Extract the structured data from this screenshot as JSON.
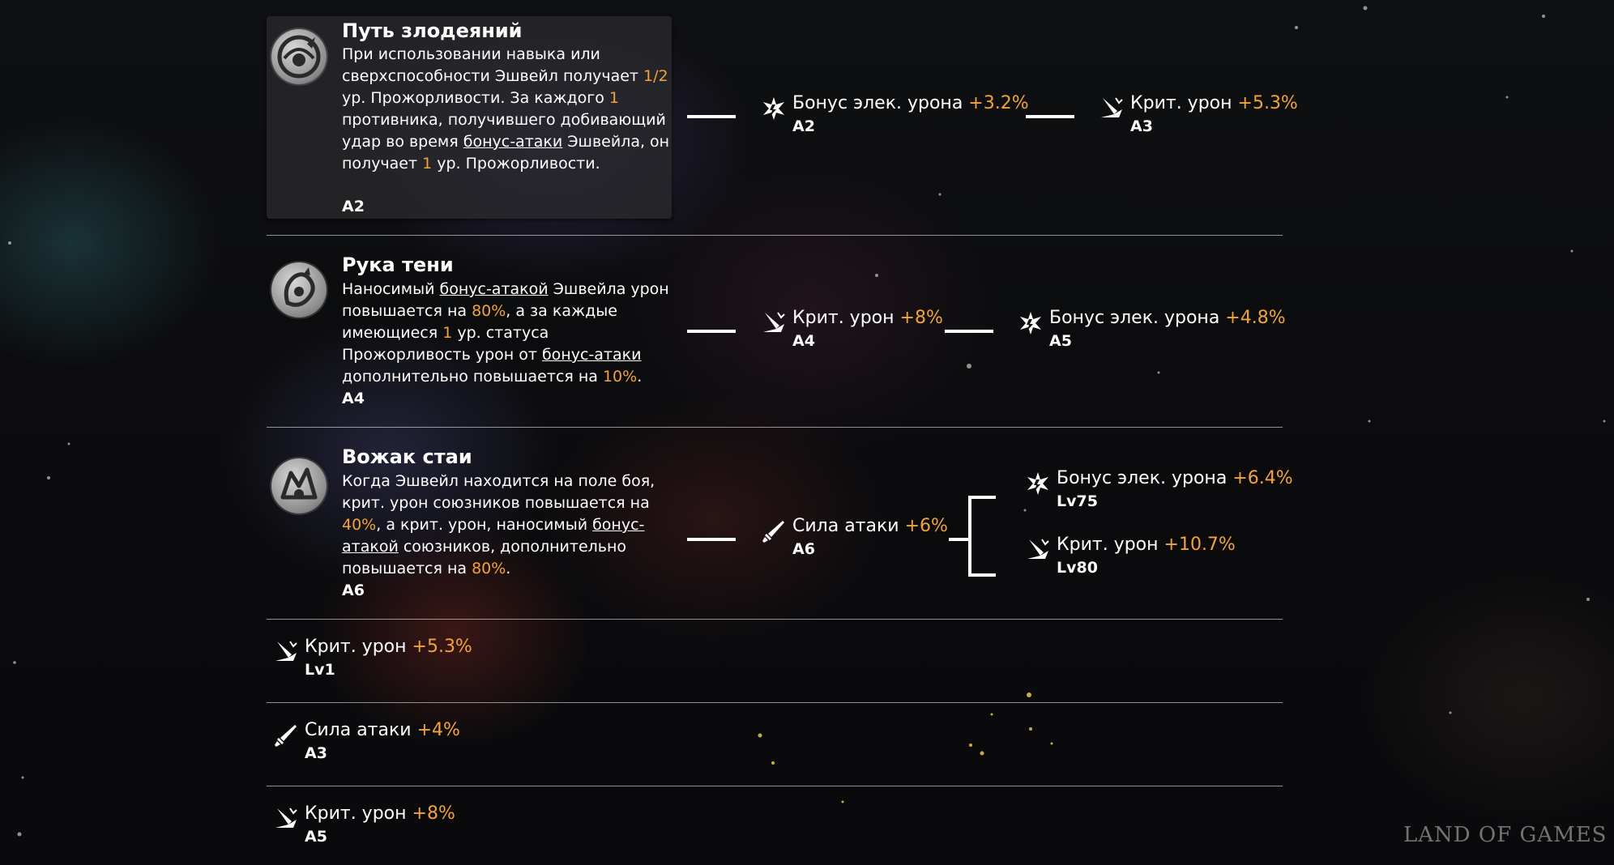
{
  "traces": [
    {
      "icon": "devour-icon",
      "title": "Путь злодеяний",
      "desc": [
        {
          "t": "При использовании навыка или сверхспособности Эшвейл получает "
        },
        {
          "t": "1/2",
          "hl": true
        },
        {
          "t": " ур. Прожорливости. За каждого "
        },
        {
          "t": "1",
          "hl": true
        },
        {
          "t": " противника, получившего добивающий удар во время "
        },
        {
          "t": "бонус-атаки",
          "u": true
        },
        {
          "t": " Эшвейла, он получает "
        },
        {
          "t": "1",
          "hl": true
        },
        {
          "t": " ур. Прожорливости."
        }
      ],
      "level": "A2",
      "stats": [
        {
          "icon": "elemental-damage-icon",
          "name": "Бонус элек. урона ",
          "value": "+3.2%",
          "level": "A2"
        },
        {
          "icon": "crit-damage-icon",
          "name": "Крит. урон ",
          "value": "+5.3%",
          "level": "A3"
        }
      ]
    },
    {
      "icon": "shadow-hand-icon",
      "title": "Рука тени",
      "desc": [
        {
          "t": "Наносимый "
        },
        {
          "t": "бонус-атакой",
          "u": true
        },
        {
          "t": " Эшвейла урон повышается на "
        },
        {
          "t": "80%",
          "hl": true
        },
        {
          "t": ", а за каждые имеющиеся "
        },
        {
          "t": "1",
          "hl": true
        },
        {
          "t": " ур. статуса Прожорливость урон от "
        },
        {
          "t": "бонус-атаки",
          "u": true
        },
        {
          "t": " дополнительно повышается на "
        },
        {
          "t": "10%",
          "hl": true
        },
        {
          "t": "."
        }
      ],
      "level": "A4",
      "stats": [
        {
          "icon": "crit-damage-icon",
          "name": "Крит. урон ",
          "value": "+8%",
          "level": "A4"
        },
        {
          "icon": "elemental-damage-icon",
          "name": "Бонус элек. урона ",
          "value": "+4.8%",
          "level": "A5"
        }
      ]
    },
    {
      "icon": "pack-leader-icon",
      "title": "Вожак стаи",
      "desc": [
        {
          "t": "Когда Эшвейл находится на поле боя, крит. урон союзников повышается на "
        },
        {
          "t": "40%",
          "hl": true
        },
        {
          "t": ", а крит. урон, наносимый "
        },
        {
          "t": "бонус-атакой",
          "u": true
        },
        {
          "t": " союзников, дополнительно повышается на "
        },
        {
          "t": "80%",
          "hl": true
        },
        {
          "t": "."
        }
      ],
      "level": "A6",
      "stats": [
        {
          "icon": "attack-icon",
          "name": "Сила атаки ",
          "value": "+6%",
          "level": "A6"
        },
        {
          "icon": "elemental-damage-icon",
          "name": "Бонус элек. урона ",
          "value": "+6.4%",
          "level": "Lv75"
        },
        {
          "icon": "crit-damage-icon",
          "name": "Крит. урон ",
          "value": "+10.7%",
          "level": "Lv80"
        }
      ]
    }
  ],
  "minor_stats": [
    {
      "icon": "crit-damage-icon",
      "name": "Крит. урон ",
      "value": "+5.3%",
      "level": "Lv1"
    },
    {
      "icon": "attack-icon",
      "name": "Сила атаки ",
      "value": "+4%",
      "level": "A3"
    },
    {
      "icon": "crit-damage-icon",
      "name": "Крит. урон ",
      "value": "+8%",
      "level": "A5"
    }
  ],
  "watermark": "LAND OF GAMES",
  "colors": {
    "highlight": "#f2a33a",
    "text": "#ffffff"
  }
}
